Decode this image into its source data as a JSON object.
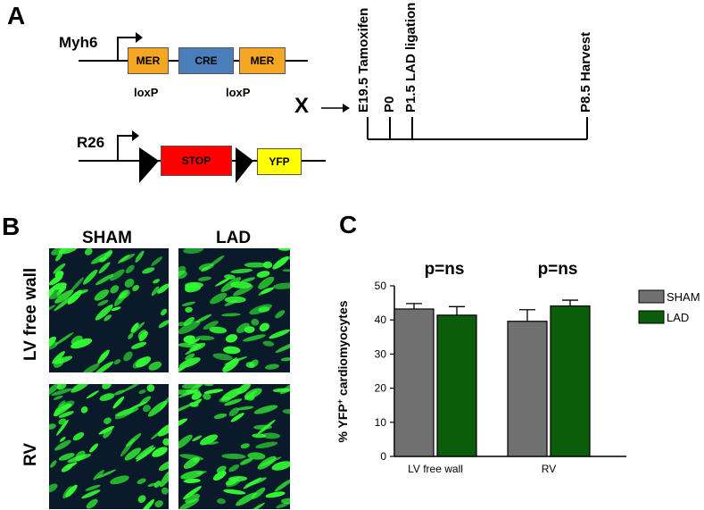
{
  "panel_a": {
    "letter": "A",
    "top_construct": {
      "gene": "Myh6",
      "boxes": [
        "MER",
        "CRE",
        "MER"
      ]
    },
    "bottom_construct": {
      "gene": "R26",
      "loxp_left": "loxP",
      "loxp_right": "loxP",
      "boxes": [
        "STOP",
        "YFP"
      ]
    },
    "cross_symbol": "X",
    "timeline_labels": [
      "E19.5 Tamoxifen",
      "P0",
      "P1.5 LAD ligation",
      "P8.5 Harvest"
    ],
    "colors": {
      "mer": "#f5a623",
      "cre": "#4a7ebb",
      "stop": "#ff0000",
      "yfp": "#ffff00"
    }
  },
  "panel_b": {
    "letter": "B",
    "columns": [
      "SHAM",
      "LAD"
    ],
    "rows": [
      "LV free wall",
      "RV"
    ],
    "colors": {
      "tissue_bg": "#0a1a2a",
      "signal": "#33ff33"
    }
  },
  "panel_c": {
    "letter": "C",
    "annotations": [
      "p=ns",
      "p=ns"
    ]
  },
  "chart_data": {
    "type": "bar",
    "categories": [
      "LV free wall",
      "RV"
    ],
    "series": [
      {
        "name": "SHAM",
        "values": [
          43.2,
          39.6
        ],
        "errors": [
          1.6,
          3.4
        ],
        "color": "#707070"
      },
      {
        "name": "LAD",
        "values": [
          41.4,
          44.1
        ],
        "errors": [
          2.5,
          1.7
        ],
        "color": "#0b5d0b"
      }
    ],
    "ylabel": "% YFP+ cardiomyocytes",
    "ylabel_main": "% YFP",
    "ylabel_sup": "+",
    "ylabel_rest": " cardiomyocytes",
    "ylim": [
      0,
      50
    ],
    "yticks": [
      0,
      10,
      20,
      30,
      40,
      50
    ],
    "grid": false,
    "legend_position": "right"
  }
}
